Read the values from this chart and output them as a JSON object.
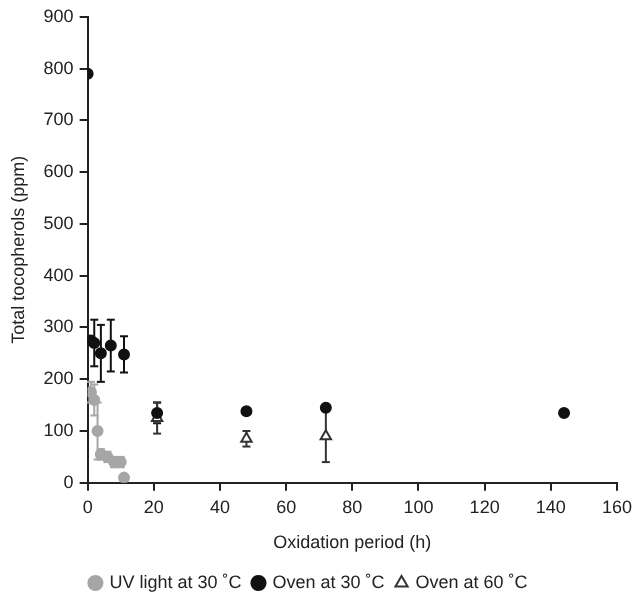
{
  "chart_data": {
    "type": "scatter",
    "xlabel": "Oxidation period (h)",
    "ylabel": "Total tocopherols (ppm)",
    "xlim": [
      0,
      160
    ],
    "xticks": [
      0,
      20,
      40,
      60,
      80,
      100,
      120,
      140,
      160
    ],
    "ylim": [
      0,
      900
    ],
    "yticks": [
      0,
      100,
      200,
      300,
      400,
      500,
      600,
      700,
      800,
      900
    ],
    "grid": false,
    "legend": "bottom",
    "series": [
      {
        "name": "UV light at 30 ˚C",
        "color": "#a6a6a6",
        "marker": "circle",
        "x": [
          1,
          2,
          3,
          4,
          6,
          8,
          10,
          11
        ],
        "values": [
          175,
          160,
          100,
          55,
          50,
          40,
          40,
          10
        ],
        "errors": [
          20,
          30,
          55,
          10,
          10,
          10,
          10,
          5
        ]
      },
      {
        "name": "Oven at 30 ˚C",
        "color": "#111111",
        "marker": "circle",
        "x": [
          0,
          1,
          2,
          4,
          7,
          11,
          21,
          48,
          72,
          144
        ],
        "values": [
          790,
          275,
          270,
          250,
          265,
          248,
          135,
          138,
          145,
          135
        ],
        "errors": [
          null,
          null,
          45,
          55,
          50,
          35,
          20,
          5,
          5,
          5
        ]
      },
      {
        "name": "Oven at 60 ˚C",
        "color": "#333333",
        "marker": "triangle",
        "x": [
          21,
          48,
          72
        ],
        "values": [
          125,
          85,
          90
        ],
        "errors": [
          30,
          15,
          50
        ]
      }
    ]
  }
}
